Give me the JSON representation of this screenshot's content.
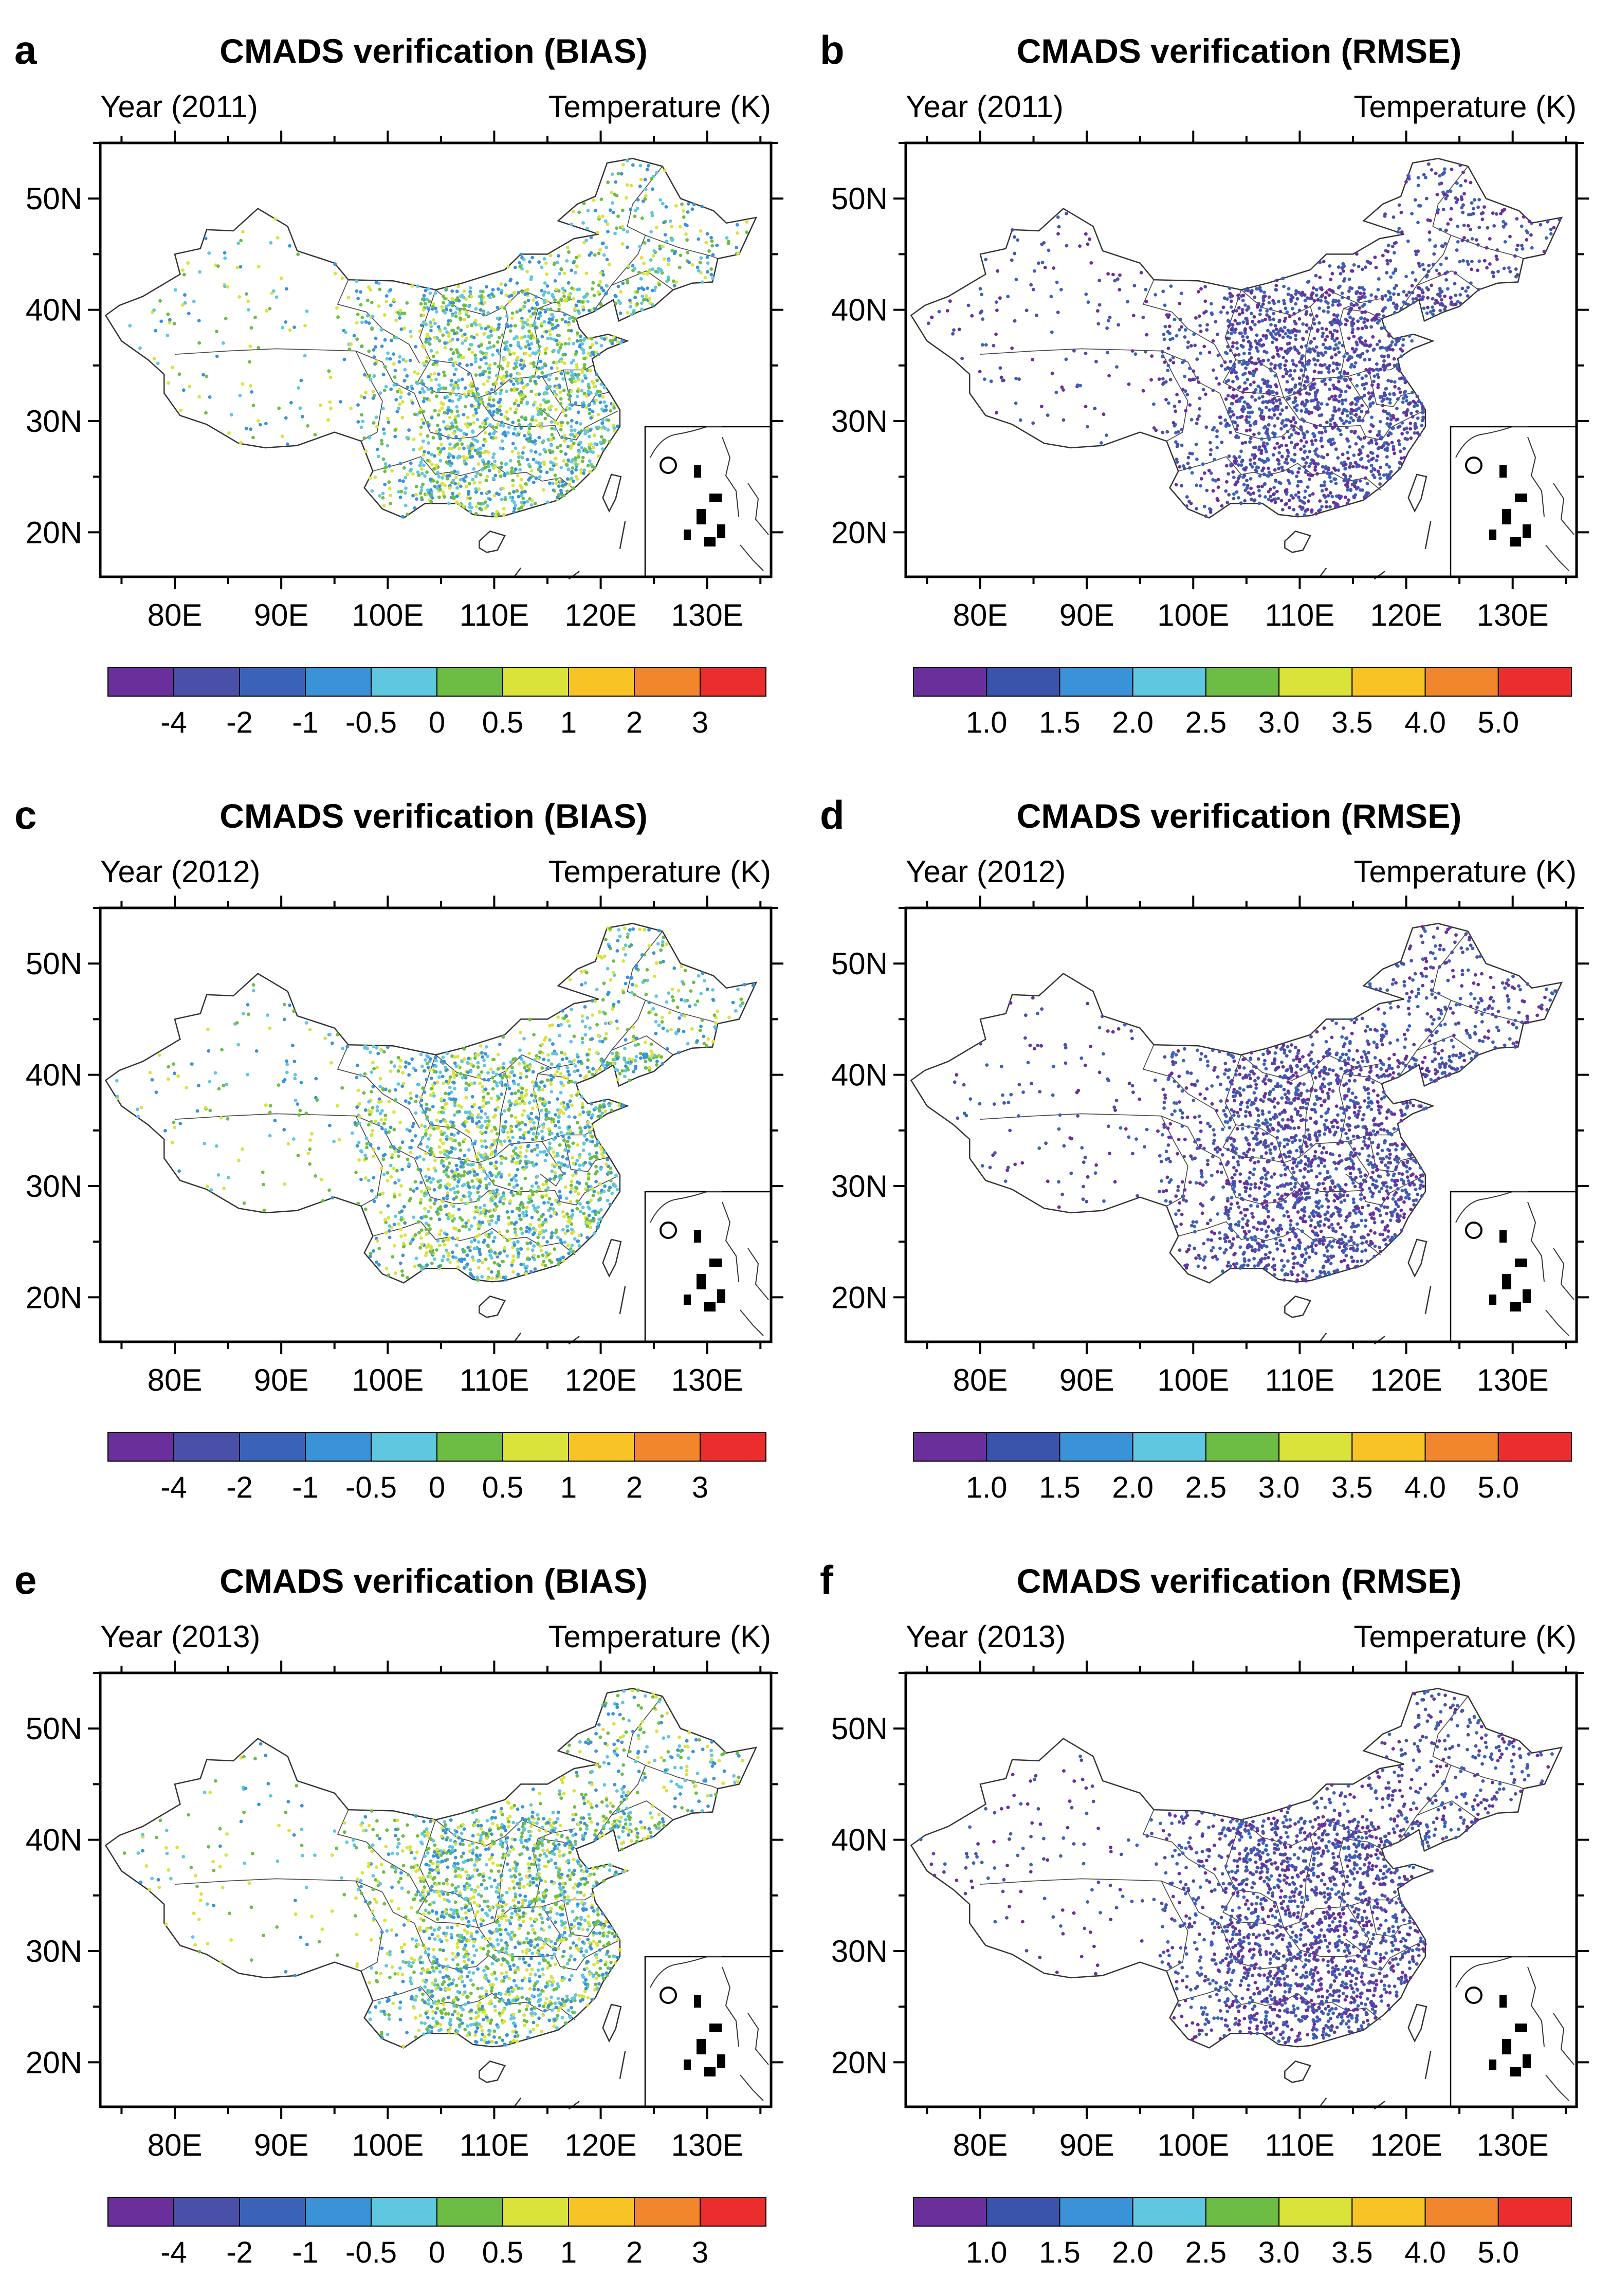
{
  "panels": [
    {
      "letter": "a",
      "title": "CMADS verification (BIAS)",
      "left_label": "Year (2011)",
      "right_label": "Temperature (K)",
      "metric": "bias"
    },
    {
      "letter": "b",
      "title": "CMADS verification (RMSE)",
      "left_label": "Year (2011)",
      "right_label": "Temperature (K)",
      "metric": "rmse"
    },
    {
      "letter": "c",
      "title": "CMADS verification (BIAS)",
      "left_label": "Year (2012)",
      "right_label": "Temperature (K)",
      "metric": "bias"
    },
    {
      "letter": "d",
      "title": "CMADS verification (RMSE)",
      "left_label": "Year (2012)",
      "right_label": "Temperature (K)",
      "metric": "rmse"
    },
    {
      "letter": "e",
      "title": "CMADS verification (BIAS)",
      "left_label": "Year (2013)",
      "right_label": "Temperature (K)",
      "metric": "bias"
    },
    {
      "letter": "f",
      "title": "CMADS verification (RMSE)",
      "left_label": "Year (2013)",
      "right_label": "Temperature (K)",
      "metric": "rmse"
    }
  ],
  "map": {
    "lon_range": [
      73,
      136
    ],
    "lat_range": [
      16,
      55
    ],
    "x_ticks": [
      80,
      90,
      100,
      110,
      120,
      130
    ],
    "x_tick_labels": [
      "80E",
      "90E",
      "100E",
      "110E",
      "120E",
      "130E"
    ],
    "y_ticks": [
      20,
      30,
      40,
      50
    ],
    "y_tick_labels": [
      "20N",
      "30N",
      "40N",
      "50N"
    ]
  },
  "colorbars": {
    "bias": {
      "colors": [
        "#6a2f9a",
        "#4a4fa8",
        "#3a63b8",
        "#3a93d6",
        "#5fc7df",
        "#6dbd45",
        "#d9e33a",
        "#f7c325",
        "#f2862c",
        "#ec2d2d"
      ],
      "labels": [
        "-4",
        "-2",
        "-1",
        "-0.5",
        "0",
        "0.5",
        "1",
        "2",
        "3"
      ]
    },
    "rmse": {
      "colors": [
        "#6a2f9a",
        "#3a54ac",
        "#3a93d6",
        "#5fc7df",
        "#6dbd45",
        "#d9e33a",
        "#f7c325",
        "#f2862c",
        "#ec2d2d"
      ],
      "labels": [
        "1.0",
        "1.5",
        "2.0",
        "2.5",
        "3.0",
        "3.5",
        "4.0",
        "5.0"
      ]
    }
  },
  "legend_colors": {
    "bias_station_colors": [
      "#5fc7df",
      "#3a93d6",
      "#6dbd45",
      "#d9e33a"
    ],
    "rmse_station_colors": [
      "#6a2f9a",
      "#4a4fa8",
      "#3a63b8"
    ]
  }
}
